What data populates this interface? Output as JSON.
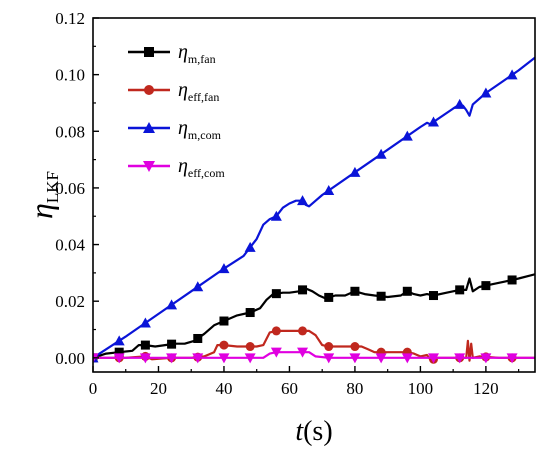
{
  "chart_data": {
    "type": "line",
    "xlabel": {
      "main": "t",
      "unit": "(s)"
    },
    "ylabel": {
      "main": "η",
      "sub": "LKF"
    },
    "xlim": [
      0,
      135
    ],
    "ylim": [
      -0.005,
      0.12
    ],
    "xticks": [
      0,
      20,
      40,
      60,
      80,
      100,
      120
    ],
    "yticks": [
      0.0,
      0.02,
      0.04,
      0.06,
      0.08,
      0.1,
      0.12
    ],
    "ytick_labels": [
      "0.00",
      "0.02",
      "0.04",
      "0.06",
      "0.08",
      "0.10",
      "0.12"
    ],
    "grid": false,
    "legend_position": "top-left",
    "series": [
      {
        "name": "η_m,fan",
        "label_main": "η",
        "label_sub": "m,fan",
        "color": "#000000",
        "marker": "square",
        "markers_x": [
          0,
          8,
          16,
          24,
          32,
          40,
          48,
          56,
          64,
          72,
          80,
          88,
          96,
          104,
          112,
          120,
          128
        ],
        "x": [
          0,
          4,
          8,
          12,
          14,
          16,
          19,
          22,
          25,
          28,
          31,
          34,
          37,
          40,
          44,
          48,
          51,
          53,
          55,
          58,
          60,
          63,
          65,
          67,
          69,
          71,
          74,
          77,
          80,
          83,
          86,
          90,
          94,
          96,
          98,
          100,
          102,
          104,
          108,
          112,
          114,
          115,
          116,
          118,
          122,
          126,
          130,
          135
        ],
        "y": [
          0.0,
          0.0015,
          0.002,
          0.0025,
          0.0045,
          0.0045,
          0.004,
          0.0045,
          0.005,
          0.005,
          0.006,
          0.0085,
          0.0115,
          0.013,
          0.015,
          0.016,
          0.0175,
          0.0205,
          0.0225,
          0.023,
          0.023,
          0.0235,
          0.0245,
          0.0235,
          0.022,
          0.021,
          0.022,
          0.022,
          0.0235,
          0.0225,
          0.022,
          0.0215,
          0.022,
          0.0235,
          0.0225,
          0.022,
          0.0225,
          0.022,
          0.023,
          0.024,
          0.024,
          0.028,
          0.0235,
          0.025,
          0.026,
          0.027,
          0.028,
          0.0295
        ]
      },
      {
        "name": "η_eff,fan",
        "label_main": "η",
        "label_sub": "eff,fan",
        "color": "#c0281e",
        "marker": "circle",
        "markers_x": [
          0,
          8,
          16,
          24,
          32,
          40,
          48,
          56,
          64,
          72,
          80,
          88,
          96,
          104,
          112,
          120,
          128
        ],
        "x": [
          0,
          10,
          16,
          18,
          24,
          30,
          34,
          37,
          38,
          40,
          44,
          48,
          50,
          52,
          54,
          56,
          60,
          64,
          66,
          68,
          70,
          72,
          76,
          80,
          82,
          84,
          86,
          88,
          92,
          96,
          98,
          100,
          102,
          103,
          104,
          105,
          108,
          112,
          114,
          114.5,
          115,
          115.5,
          116,
          118,
          124,
          135
        ],
        "y": [
          0.0,
          0.0,
          0.0005,
          -0.0005,
          0.0,
          0.0,
          0.0005,
          0.002,
          0.0045,
          0.0045,
          0.004,
          0.004,
          0.004,
          0.0045,
          0.009,
          0.0095,
          0.0095,
          0.0095,
          0.0095,
          0.008,
          0.0045,
          0.004,
          0.004,
          0.004,
          0.004,
          0.003,
          0.002,
          0.002,
          0.002,
          0.002,
          0.0015,
          0.0005,
          0.001,
          -0.0005,
          -0.0005,
          0.0,
          0.0,
          0.0,
          0.0,
          0.006,
          -0.001,
          0.005,
          0.0,
          0.0005,
          0.0,
          0.0
        ]
      },
      {
        "name": "η_m,com",
        "label_main": "η",
        "label_sub": "m,com",
        "color": "#0a14d8",
        "marker": "triangle-up",
        "markers_x": [
          0,
          8,
          16,
          24,
          32,
          40,
          48,
          56,
          64,
          72,
          80,
          88,
          96,
          104,
          112,
          120,
          128
        ],
        "x": [
          0,
          10,
          20,
          30,
          40,
          46,
          50,
          52,
          54,
          56,
          58,
          60,
          62,
          64,
          65,
          66,
          68,
          70,
          80,
          90,
          100,
          102,
          103,
          110,
          112,
          113,
          114,
          115,
          116,
          120,
          130,
          135
        ],
        "y": [
          0.0,
          0.0075,
          0.0155,
          0.0235,
          0.0315,
          0.036,
          0.042,
          0.047,
          0.049,
          0.05,
          0.053,
          0.0545,
          0.0555,
          0.0555,
          0.054,
          0.0535,
          0.0555,
          0.0575,
          0.0655,
          0.0735,
          0.0815,
          0.083,
          0.0825,
          0.088,
          0.0895,
          0.089,
          0.0875,
          0.0855,
          0.0895,
          0.0935,
          0.1015,
          0.106
        ]
      },
      {
        "name": "η_eff,com",
        "label_main": "η",
        "label_sub": "eff,com",
        "color": "#e000e0",
        "marker": "triangle-down",
        "markers_x": [
          0,
          8,
          16,
          24,
          32,
          40,
          48,
          56,
          64,
          72,
          80,
          88,
          96,
          104,
          112,
          120,
          128
        ],
        "x": [
          0,
          8,
          16,
          24,
          32,
          40,
          48,
          52,
          54,
          56,
          60,
          64,
          66,
          68,
          72,
          80,
          88,
          96,
          104,
          112,
          120,
          128,
          135
        ],
        "y": [
          0.0,
          0.0,
          0.0,
          0.0,
          0.0,
          0.0,
          0.0,
          0.0,
          0.0015,
          0.002,
          0.002,
          0.002,
          0.002,
          0.0005,
          0.0,
          0.0,
          0.0,
          0.0,
          0.0,
          0.0,
          0.0,
          0.0,
          0.0
        ]
      }
    ]
  }
}
